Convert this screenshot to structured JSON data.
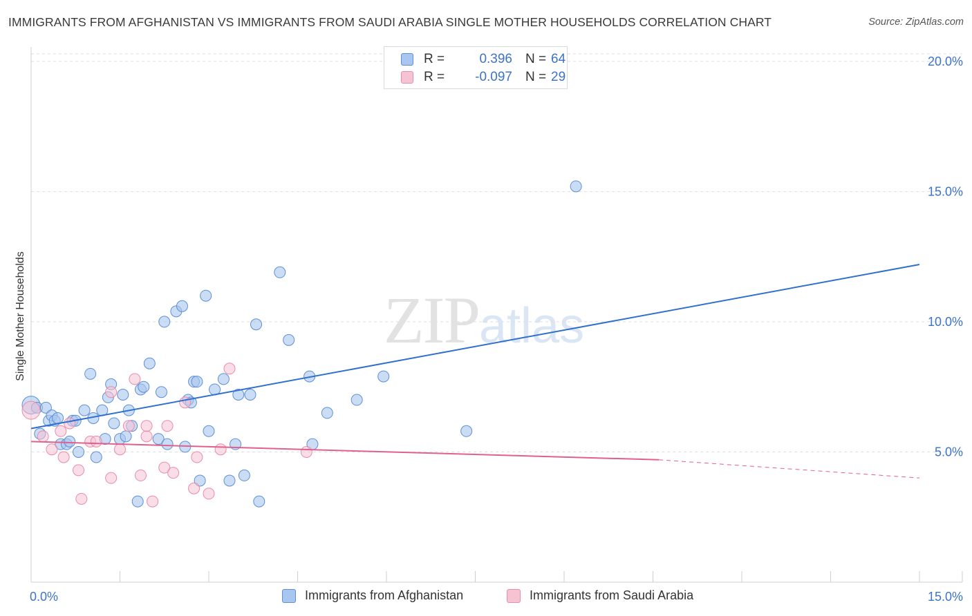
{
  "title": "IMMIGRANTS FROM AFGHANISTAN VS IMMIGRANTS FROM SAUDI ARABIA SINGLE MOTHER HOUSEHOLDS CORRELATION CHART",
  "source": "Source: ZipAtlas.com",
  "watermark": {
    "zip": "ZIP",
    "atlas": "atlas"
  },
  "legend_top": {
    "r_label": "R =",
    "n_label": "N =",
    "rows": [
      {
        "r": "0.396",
        "n": "64"
      },
      {
        "r": "-0.097",
        "n": "29"
      }
    ]
  },
  "legend_bottom": [
    "Immigrants from Afghanistan",
    "Immigrants from Saudi Arabia"
  ],
  "colors": {
    "blue_fill": "#a8c6ef",
    "blue_stroke": "#5b8fd6",
    "blue_line": "#2f6fce",
    "pink_fill": "#f6c3d3",
    "pink_stroke": "#e98bab",
    "pink_line": "#e0608c",
    "tick_label": "#3b73c8",
    "grid": "#dedede"
  },
  "chart_data": {
    "type": "scatter",
    "title": "IMMIGRANTS FROM AFGHANISTAN VS IMMIGRANTS FROM SAUDI ARABIA SINGLE MOTHER HOUSEHOLDS CORRELATION CHART",
    "xlabel": "",
    "ylabel": "Single Mother Households",
    "xlim": [
      0,
      15
    ],
    "ylim": [
      0,
      20.5
    ],
    "x_tick_labels": [
      {
        "value": 0,
        "label": "0.0%"
      },
      {
        "value": 15,
        "label": "15.0%"
      }
    ],
    "y_tick_labels": [
      {
        "value": 5,
        "label": "5.0%"
      },
      {
        "value": 10,
        "label": "10.0%"
      },
      {
        "value": 15,
        "label": "15.0%"
      },
      {
        "value": 20,
        "label": "20.0%"
      }
    ],
    "series": [
      {
        "name": "Immigrants from Afghanistan",
        "color": "blue",
        "points": [
          [
            0.0,
            6.8
          ],
          [
            0.1,
            6.7
          ],
          [
            0.15,
            5.7
          ],
          [
            0.25,
            6.7
          ],
          [
            0.3,
            6.2
          ],
          [
            0.35,
            6.4
          ],
          [
            0.4,
            6.2
          ],
          [
            0.45,
            6.3
          ],
          [
            0.5,
            5.3
          ],
          [
            0.6,
            5.3
          ],
          [
            0.65,
            5.4
          ],
          [
            0.7,
            6.2
          ],
          [
            0.75,
            6.2
          ],
          [
            0.8,
            5.0
          ],
          [
            0.9,
            6.6
          ],
          [
            1.0,
            8.0
          ],
          [
            1.05,
            6.3
          ],
          [
            1.1,
            4.8
          ],
          [
            1.2,
            6.6
          ],
          [
            1.25,
            5.5
          ],
          [
            1.3,
            7.1
          ],
          [
            1.35,
            7.6
          ],
          [
            1.4,
            6.1
          ],
          [
            1.5,
            5.5
          ],
          [
            1.55,
            7.2
          ],
          [
            1.6,
            5.6
          ],
          [
            1.65,
            6.6
          ],
          [
            1.7,
            6.0
          ],
          [
            1.8,
            3.1
          ],
          [
            1.85,
            7.4
          ],
          [
            1.9,
            7.5
          ],
          [
            2.0,
            8.4
          ],
          [
            2.15,
            5.5
          ],
          [
            2.2,
            7.3
          ],
          [
            2.25,
            10.0
          ],
          [
            2.3,
            5.3
          ],
          [
            2.45,
            10.4
          ],
          [
            2.55,
            10.6
          ],
          [
            2.6,
            5.2
          ],
          [
            2.65,
            7.0
          ],
          [
            2.7,
            6.9
          ],
          [
            2.75,
            7.7
          ],
          [
            2.8,
            7.7
          ],
          [
            2.85,
            3.9
          ],
          [
            2.95,
            11.0
          ],
          [
            3.0,
            5.8
          ],
          [
            3.1,
            7.4
          ],
          [
            3.25,
            7.8
          ],
          [
            3.35,
            3.9
          ],
          [
            3.45,
            5.3
          ],
          [
            3.5,
            7.2
          ],
          [
            3.6,
            4.1
          ],
          [
            3.7,
            7.2
          ],
          [
            3.8,
            9.9
          ],
          [
            3.85,
            3.1
          ],
          [
            4.2,
            11.9
          ],
          [
            4.35,
            9.3
          ],
          [
            4.75,
            5.3
          ],
          [
            4.7,
            7.9
          ],
          [
            5.0,
            6.5
          ],
          [
            5.5,
            7.0
          ],
          [
            5.95,
            7.9
          ],
          [
            7.35,
            5.8
          ],
          [
            9.2,
            15.2
          ]
        ]
      },
      {
        "name": "Immigrants from Saudi Arabia",
        "color": "pink",
        "points": [
          [
            0.0,
            6.6
          ],
          [
            0.2,
            5.6
          ],
          [
            0.35,
            5.1
          ],
          [
            0.5,
            5.8
          ],
          [
            0.55,
            4.8
          ],
          [
            0.65,
            6.1
          ],
          [
            0.8,
            4.3
          ],
          [
            0.85,
            3.2
          ],
          [
            1.0,
            5.4
          ],
          [
            1.1,
            5.4
          ],
          [
            1.35,
            7.3
          ],
          [
            1.35,
            4.0
          ],
          [
            1.5,
            5.1
          ],
          [
            1.65,
            6.0
          ],
          [
            1.75,
            7.8
          ],
          [
            1.85,
            4.1
          ],
          [
            1.95,
            5.6
          ],
          [
            2.05,
            3.1
          ],
          [
            2.25,
            4.4
          ],
          [
            2.3,
            6.0
          ],
          [
            2.4,
            4.2
          ],
          [
            2.6,
            6.9
          ],
          [
            2.75,
            3.6
          ],
          [
            2.8,
            4.8
          ],
          [
            3.0,
            3.4
          ],
          [
            3.2,
            5.1
          ],
          [
            3.35,
            8.2
          ],
          [
            4.65,
            5.0
          ],
          [
            1.95,
            6.0
          ]
        ]
      }
    ],
    "trend_lines": [
      {
        "series": "Immigrants from Afghanistan",
        "x": [
          0,
          15
        ],
        "y": [
          5.9,
          12.2
        ],
        "style": "solid"
      },
      {
        "series": "Immigrants from Saudi Arabia",
        "x": [
          0,
          10.6
        ],
        "y": [
          5.4,
          4.7
        ],
        "style": "solid"
      },
      {
        "series": "Immigrants from Saudi Arabia",
        "x": [
          10.6,
          15
        ],
        "y": [
          4.7,
          4.0
        ],
        "style": "dashed"
      }
    ]
  }
}
